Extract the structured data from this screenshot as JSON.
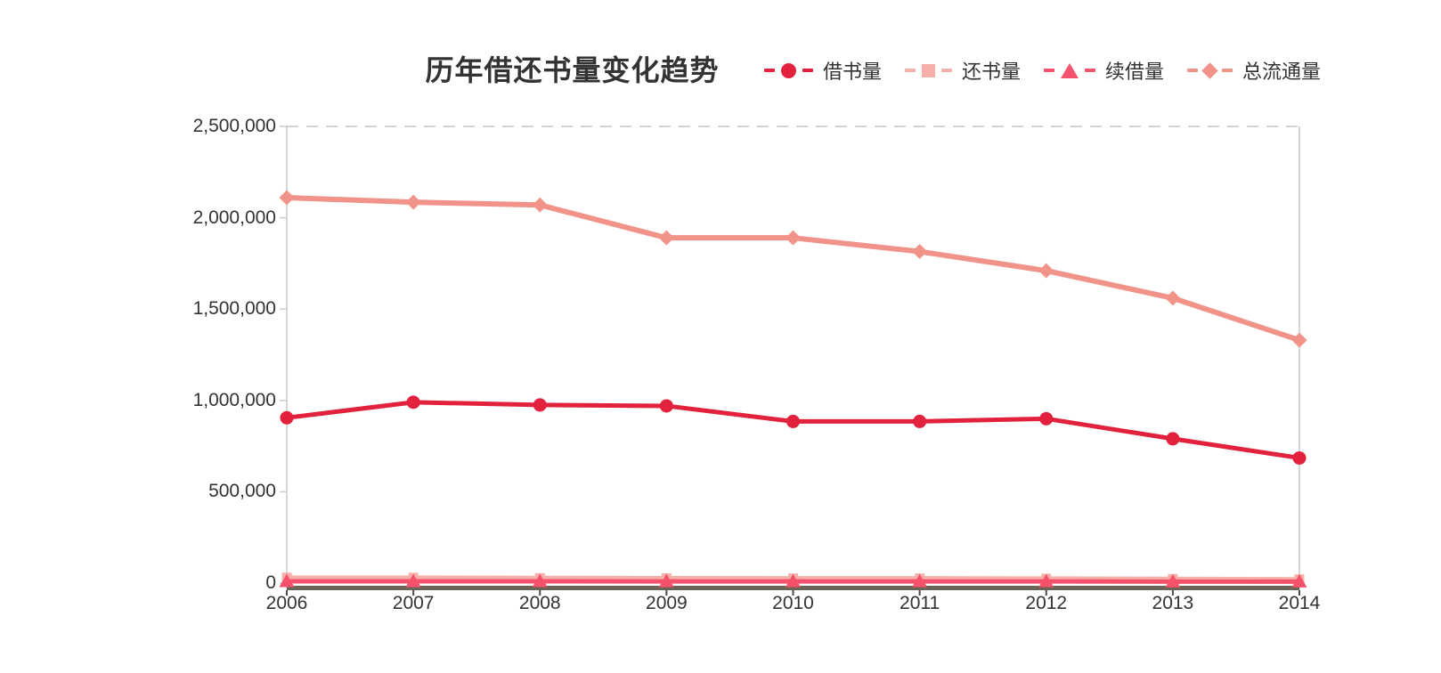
{
  "title": "历年借还书量变化趋势",
  "legend": [
    {
      "key": "borrow",
      "label": "借书量",
      "color": "#e2213c",
      "marker": "circle"
    },
    {
      "key": "return",
      "label": "还书量",
      "color": "#f7b0a9",
      "marker": "square"
    },
    {
      "key": "renew",
      "label": "续借量",
      "color": "#f4516d",
      "marker": "triangle"
    },
    {
      "key": "total",
      "label": "总流通量",
      "color": "#f2938a",
      "marker": "diamond"
    }
  ],
  "chart_data": {
    "type": "line",
    "title": "历年借还书量变化趋势",
    "x": [
      2006,
      2007,
      2008,
      2009,
      2010,
      2011,
      2012,
      2013,
      2014
    ],
    "series": [
      {
        "name": "借书量",
        "key": "borrow",
        "color": "#e2213c",
        "marker": "circle",
        "values": [
          905000,
          990000,
          975000,
          970000,
          885000,
          885000,
          900000,
          790000,
          685000
        ]
      },
      {
        "name": "还书量",
        "key": "return",
        "color": "#f7b0a9",
        "marker": "square",
        "values": [
          30000,
          30000,
          28000,
          27000,
          26000,
          26000,
          25000,
          23000,
          21000
        ]
      },
      {
        "name": "续借量",
        "key": "renew",
        "color": "#f4516d",
        "marker": "triangle",
        "values": [
          10000,
          10000,
          10000,
          9000,
          9000,
          9000,
          9000,
          8000,
          8000
        ]
      },
      {
        "name": "总流通量",
        "key": "total",
        "color": "#f2938a",
        "marker": "diamond",
        "values": [
          2110000,
          2085000,
          2070000,
          1890000,
          1890000,
          1815000,
          1710000,
          1560000,
          1330000
        ]
      }
    ],
    "ylim": [
      0,
      2500000
    ],
    "yticks": [
      {
        "value": 2500000,
        "label": "2,500,000"
      },
      {
        "value": 2000000,
        "label": "2,000,000"
      },
      {
        "value": 1500000,
        "label": "1,500,000"
      },
      {
        "value": 1000000,
        "label": "1,000,000"
      },
      {
        "value": 500000,
        "label": "500,000"
      },
      {
        "value": 0,
        "label": "0"
      }
    ],
    "grid": "dashed gridline at top (2,500,000) only",
    "legend_position": "top-right",
    "xlabel": "",
    "ylabel": ""
  },
  "colors": {
    "background": "#ffffff",
    "text": "#333333",
    "axis_gray": "#c9c9c9",
    "gridline": "#d2d2d2",
    "baseline_dark": "#6b6355",
    "tick_dark": "#4a4a4a"
  }
}
